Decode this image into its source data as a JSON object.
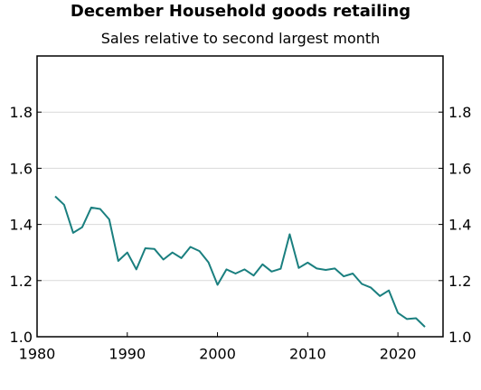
{
  "chart_data": {
    "type": "line",
    "title": "December Household goods retailing",
    "subtitle": "Sales relative to second largest month",
    "xlabel": "",
    "ylabel": "",
    "xlim": [
      1980,
      2025
    ],
    "ylim": [
      1.0,
      2.0
    ],
    "x_ticks": [
      1980,
      1990,
      2000,
      2010,
      2020
    ],
    "y_ticks": [
      1.0,
      1.2,
      1.4,
      1.6,
      1.8
    ],
    "y_tick_labels": [
      "1.0",
      "1.2",
      "1.4",
      "1.6",
      "1.8"
    ],
    "grid": true,
    "line_color": "#1a7f7f",
    "series": [
      {
        "x": [
          1982,
          1983,
          1984,
          1985,
          1986,
          1987,
          1988,
          1989,
          1990,
          1991,
          1992,
          1993,
          1994,
          1995,
          1996,
          1997,
          1998,
          1999,
          2000,
          2001,
          2002,
          2003,
          2004,
          2005,
          2006,
          2007,
          2008,
          2009,
          2010,
          2011,
          2012,
          2013,
          2014,
          2015,
          2016,
          2017,
          2018,
          2019,
          2020,
          2021,
          2022,
          2023
        ],
        "values": [
          1.5,
          1.47,
          1.37,
          1.39,
          1.46,
          1.455,
          1.418,
          1.27,
          1.3,
          1.24,
          1.315,
          1.313,
          1.275,
          1.3,
          1.28,
          1.32,
          1.305,
          1.265,
          1.185,
          1.24,
          1.225,
          1.24,
          1.218,
          1.258,
          1.232,
          1.242,
          1.365,
          1.245,
          1.264,
          1.243,
          1.238,
          1.243,
          1.215,
          1.225,
          1.188,
          1.175,
          1.145,
          1.165,
          1.085,
          1.063,
          1.066,
          1.035
        ]
      }
    ]
  }
}
